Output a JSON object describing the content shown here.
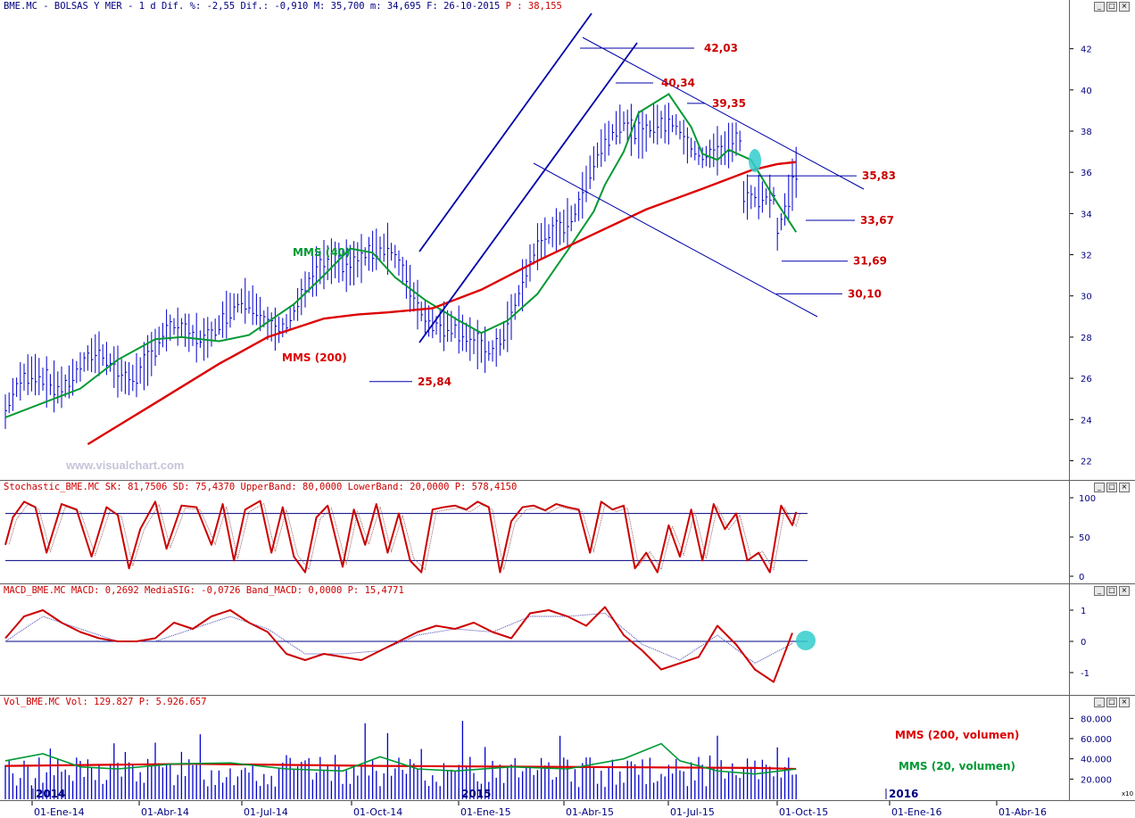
{
  "header": {
    "symbol": "BME.MC - BOLSAS Y MER -",
    "stats": "1 d Dif. %: -2,55 Dif.: -0,910 M: 35,700 m: 34,695 F: 26-10-2015",
    "price": "P : 38,155"
  },
  "stochastic_header": {
    "text": "Stochastic_BME.MC SK: 81,7506 SD: 75,4370 UpperBand: 80,0000 LowerBand: 20,0000 P: 578,4150"
  },
  "macd_header": {
    "text": "MACD_BME.MC MACD: 0,2692 MediaSIG: -0,0726 Band_MACD: 0,0000 P: 15,4771"
  },
  "volume_header": {
    "text": "Vol_BME.MC Vol: 129.827 P: 5.926.657"
  },
  "watermark": "www.visualchart.com",
  "window_buttons": [
    "_",
    "□",
    "×"
  ],
  "colors": {
    "price_bars": "#0000cc",
    "mms40": "#009933",
    "mms200": "#dd0000",
    "annot": "#cc0000",
    "channel": "#0000aa",
    "highlight": "#33cccc"
  },
  "chart_data": [
    {
      "type": "line",
      "name": "price",
      "ylim": [
        21.5,
        43.5
      ],
      "y_ticks": [
        "22",
        "24",
        "26",
        "28",
        "30",
        "32",
        "34",
        "36",
        "38",
        "40",
        "42"
      ],
      "x_ticks": [
        "01-Ene-14",
        "01-Abr-14",
        "01-Jul-14",
        "01-Oct-14",
        "01-Ene-15",
        "01-Abr-15",
        "01-Jul-15",
        "01-Oct-15",
        "01-Ene-16",
        "01-Abr-16"
      ],
      "year_labels": [
        "2014",
        "2015",
        "2016"
      ],
      "series": [
        {
          "name": "MMS (40)",
          "color": "#009933",
          "x": [
            0,
            20,
            30,
            40,
            47,
            57,
            65,
            77,
            85,
            92,
            98,
            104,
            112,
            121,
            127,
            134,
            142,
            150,
            157,
            160,
            165,
            169,
            177,
            183,
            186,
            190,
            193,
            199,
            206,
            211
          ],
          "y": [
            24.1,
            25.5,
            26.9,
            27.9,
            28.0,
            27.8,
            28.1,
            29.6,
            31.0,
            32.3,
            32.1,
            30.9,
            29.8,
            28.8,
            28.2,
            28.8,
            30.1,
            32.2,
            34.1,
            35.4,
            37.0,
            38.9,
            39.8,
            38.2,
            36.9,
            36.6,
            37.1,
            36.6,
            34.5,
            33.1
          ]
        },
        {
          "name": "MMS (200)",
          "color": "#dd0000",
          "x": [
            22,
            40,
            57,
            70,
            85,
            94,
            102,
            114,
            127,
            142,
            157,
            171,
            186,
            199,
            206,
            211
          ],
          "y": [
            22.8,
            24.8,
            26.7,
            28.0,
            28.9,
            29.1,
            29.2,
            29.4,
            30.3,
            31.7,
            33.0,
            34.2,
            35.2,
            36.1,
            36.4,
            36.5
          ]
        }
      ],
      "annotations": [
        {
          "text": "42,03",
          "value": 42.03
        },
        {
          "text": "40,34",
          "value": 40.34
        },
        {
          "text": "39,35",
          "value": 39.35
        },
        {
          "text": "35,83",
          "value": 35.83
        },
        {
          "text": "33,67",
          "value": 33.67
        },
        {
          "text": "31,69",
          "value": 31.69
        },
        {
          "text": "30,10",
          "value": 30.1
        },
        {
          "text": "25,84",
          "value": 25.84
        }
      ],
      "legend_labels": [
        "MMS (40)",
        "MMS (200)"
      ]
    },
    {
      "type": "line",
      "name": "stochastic",
      "ylim": [
        0,
        100
      ],
      "y_ticks": [
        "0",
        "50",
        "100"
      ],
      "bands": [
        20,
        80
      ],
      "series": [
        {
          "name": "SK",
          "color": "#cc0000",
          "x": [
            0,
            2,
            5,
            8,
            11,
            15,
            19,
            23,
            27,
            30,
            33,
            36,
            40,
            43,
            47,
            51,
            55,
            58,
            61,
            64,
            68,
            71,
            74,
            77,
            80,
            83,
            86,
            90,
            93,
            96,
            99,
            102,
            105,
            108,
            111,
            114,
            117,
            120,
            123,
            126,
            129,
            132,
            135,
            138,
            141,
            144,
            147,
            150,
            153,
            156,
            159,
            162,
            165,
            168,
            171,
            174,
            177,
            180,
            183,
            186,
            189,
            192,
            195,
            198,
            201,
            204,
            207,
            210,
            211
          ],
          "y": [
            40,
            75,
            95,
            88,
            30,
            92,
            85,
            25,
            88,
            78,
            10,
            60,
            95,
            35,
            90,
            88,
            40,
            92,
            20,
            85,
            96,
            30,
            88,
            25,
            5,
            75,
            90,
            12,
            85,
            40,
            92,
            30,
            80,
            20,
            5,
            85,
            88,
            90,
            85,
            95,
            88,
            5,
            70,
            88,
            90,
            84,
            92,
            88,
            85,
            30,
            95,
            85,
            90,
            10,
            30,
            5,
            65,
            25,
            85,
            20,
            92,
            60,
            80,
            20,
            30,
            5,
            90,
            65,
            82
          ]
        }
      ]
    },
    {
      "type": "line",
      "name": "macd",
      "ylim": [
        -1.6,
        1.4
      ],
      "y_ticks": [
        "-1",
        "0",
        "1"
      ],
      "series": [
        {
          "name": "MACD",
          "color": "#cc0000",
          "x": [
            0,
            5,
            10,
            15,
            20,
            25,
            30,
            35,
            40,
            45,
            50,
            55,
            60,
            65,
            70,
            75,
            80,
            85,
            90,
            95,
            100,
            105,
            110,
            115,
            120,
            125,
            130,
            135,
            140,
            145,
            150,
            155,
            160,
            165,
            170,
            175,
            180,
            185,
            190,
            195,
            200,
            205,
            210
          ],
          "y": [
            0.1,
            0.8,
            1.0,
            0.6,
            0.3,
            0.1,
            0.0,
            0.0,
            0.1,
            0.6,
            0.4,
            0.8,
            1.0,
            0.6,
            0.3,
            -0.4,
            -0.6,
            -0.4,
            -0.5,
            -0.6,
            -0.3,
            0.0,
            0.3,
            0.5,
            0.4,
            0.6,
            0.3,
            0.1,
            0.9,
            1.0,
            0.8,
            0.5,
            1.1,
            0.2,
            -0.3,
            -0.9,
            -0.7,
            -0.5,
            0.5,
            -0.1,
            -0.9,
            -1.3,
            0.27
          ]
        },
        {
          "name": "MediaSIG",
          "color": "#3333aa",
          "x": [
            0,
            10,
            20,
            30,
            40,
            50,
            60,
            70,
            80,
            90,
            100,
            110,
            120,
            130,
            140,
            150,
            160,
            170,
            180,
            190,
            200,
            210
          ],
          "y": [
            0.0,
            0.8,
            0.4,
            0.0,
            0.0,
            0.4,
            0.8,
            0.4,
            -0.4,
            -0.4,
            -0.3,
            0.2,
            0.4,
            0.3,
            0.8,
            0.8,
            0.9,
            -0.1,
            -0.6,
            0.2,
            -0.7,
            -0.07
          ]
        }
      ]
    },
    {
      "type": "bar",
      "name": "volume",
      "ylim": [
        0,
        90000
      ],
      "y_ticks": [
        "20.000",
        "40.000",
        "60.000",
        "80.000"
      ],
      "multiplier_label": "x10",
      "series": [
        {
          "name": "MMS (200, volumen)",
          "color": "#dd0000",
          "x": [
            0,
            50,
            100,
            150,
            200,
            211
          ],
          "y": [
            33000,
            35000,
            33000,
            32000,
            31000,
            30000
          ]
        },
        {
          "name": "MMS (20, volumen)",
          "color": "#009933",
          "x": [
            0,
            10,
            20,
            30,
            45,
            60,
            75,
            90,
            100,
            110,
            120,
            135,
            150,
            165,
            175,
            180,
            190,
            200,
            211
          ],
          "y": [
            38000,
            45000,
            32000,
            30000,
            35000,
            36000,
            30000,
            28000,
            42000,
            30000,
            28000,
            32000,
            30000,
            40000,
            55000,
            38000,
            28000,
            25000,
            30000
          ]
        }
      ],
      "legend_labels": [
        "MMS (200, volumen)",
        "MMS (20, volumen)"
      ]
    }
  ]
}
